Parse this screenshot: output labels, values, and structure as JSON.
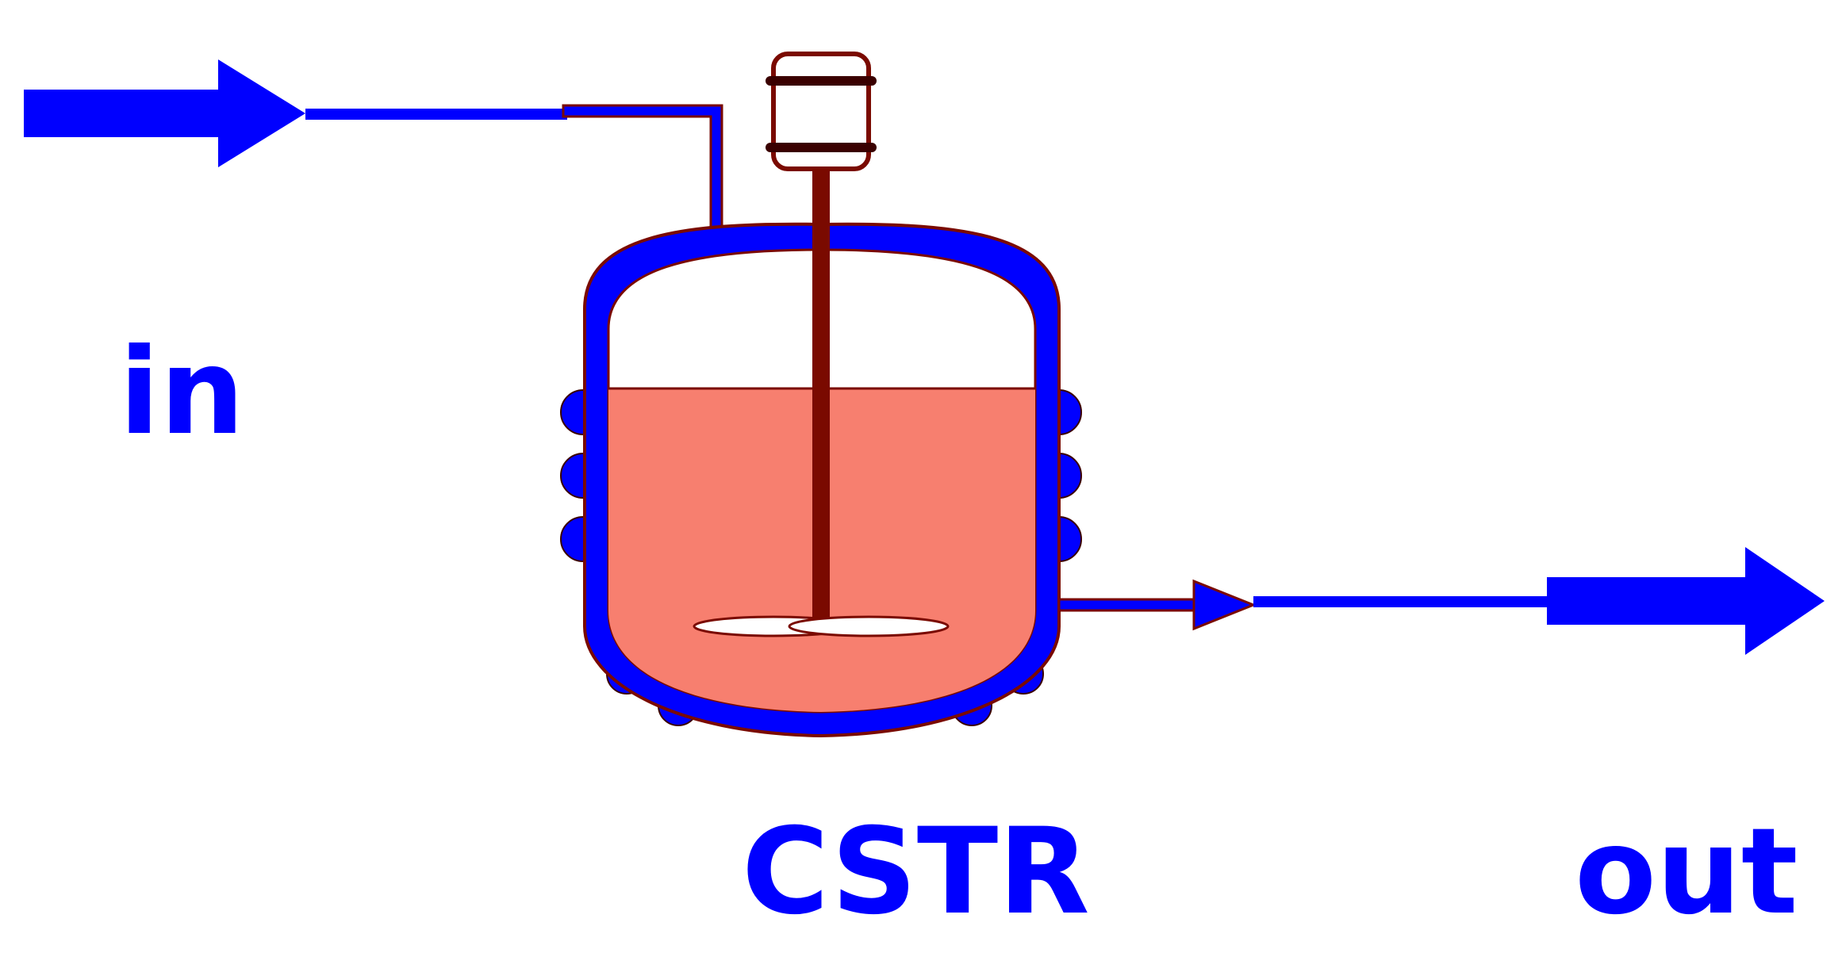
{
  "labels": {
    "inlet": "in",
    "reactor": "CSTR",
    "outlet": "out"
  },
  "colors": {
    "flow": "#0000ff",
    "liquid": "#f77f6f",
    "outline": "#7a0a00",
    "vessel_interior": "#ffffff",
    "impeller": "#ffffff"
  },
  "icons": {
    "inlet_arrow": "arrow-right-icon",
    "outlet_arrow": "arrow-right-icon",
    "feed_arrow": "arrow-down-icon",
    "motor": "motor-icon",
    "impeller": "impeller-icon"
  }
}
